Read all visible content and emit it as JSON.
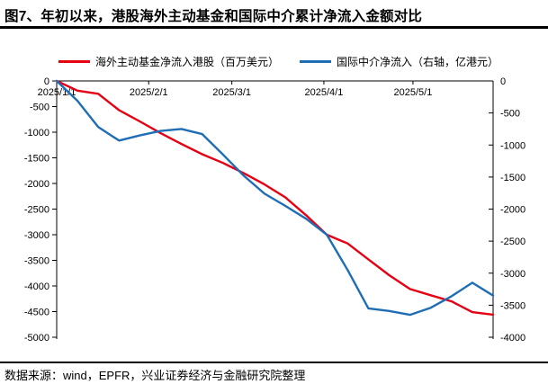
{
  "title": "图7、年初以来，港股海外主动基金和国际中介累计净流入金额对比",
  "footer": "数据来源：wind，EPFR，兴业证券经济与金融研究院整理",
  "colors": {
    "series_red": "#e60014",
    "series_blue": "#1f6eb5",
    "axis": "#000000",
    "text": "#000000"
  },
  "legend": [
    {
      "label": "海外主动基金净流入港股（百万美元）",
      "color": "#e60014"
    },
    {
      "label": "国际中介净流入（右轴，亿港元）",
      "color": "#1f6eb5"
    }
  ],
  "chart_data": {
    "type": "line",
    "title": "",
    "grid": false,
    "legend_position": "top",
    "x_tick_labels": [
      "2025/1/1",
      "2025/2/1",
      "2025/3/1",
      "2025/4/1",
      "2025/5/1"
    ],
    "x_ticks": [
      {
        "label": "2025/1/1",
        "day": 0
      },
      {
        "label": "2025/2/1",
        "day": 31
      },
      {
        "label": "2025/3/1",
        "day": 59
      },
      {
        "label": "2025/4/1",
        "day": 90
      },
      {
        "label": "2025/5/1",
        "day": 120
      }
    ],
    "dates": [
      "2025/1/1",
      "2025/1/8",
      "2025/1/15",
      "2025/1/22",
      "2025/1/29",
      "2025/2/5",
      "2025/2/12",
      "2025/2/19",
      "2025/2/26",
      "2025/3/5",
      "2025/3/12",
      "2025/3/19",
      "2025/3/26",
      "2025/4/2",
      "2025/4/9",
      "2025/4/16",
      "2025/4/23",
      "2025/4/30",
      "2025/5/7",
      "2025/5/14",
      "2025/5/21",
      "2025/5/28"
    ],
    "day_offsets": [
      0,
      7,
      14,
      21,
      28,
      35,
      42,
      49,
      56,
      63,
      70,
      77,
      84,
      91,
      98,
      105,
      112,
      119,
      126,
      133,
      140,
      147
    ],
    "series": [
      {
        "name": "海外主动基金净流入港股（百万美元）",
        "axis": "left",
        "color": "#e60014",
        "values": [
          0,
          -190,
          -250,
          -570,
          -790,
          -1020,
          -1230,
          -1430,
          -1600,
          -1800,
          -2020,
          -2270,
          -2620,
          -3000,
          -3170,
          -3480,
          -3790,
          -4060,
          -4180,
          -4300,
          -4510,
          -4560
        ]
      },
      {
        "name": "国际中介净流入（右轴，亿港元）",
        "axis": "right",
        "color": "#1f6eb5",
        "values": [
          0,
          -310,
          -720,
          -930,
          -850,
          -780,
          -750,
          -830,
          -1150,
          -1480,
          -1760,
          -1950,
          -2150,
          -2400,
          -2950,
          -3550,
          -3590,
          -3650,
          -3540,
          -3360,
          -3150,
          -3350
        ]
      }
    ],
    "left_axis": {
      "label": "海外主动基金净流入港股（百万美元）",
      "min": -5000,
      "max": 0,
      "step": 500,
      "ticks": [
        0,
        -500,
        -1000,
        -1500,
        -2000,
        -2500,
        -3000,
        -3500,
        -4000,
        -4500,
        -5000
      ]
    },
    "right_axis": {
      "label": "国际中介净流入（亿港元）",
      "min": -4000,
      "max": 0,
      "step": 500,
      "ticks": [
        0,
        -500,
        -1000,
        -1500,
        -2000,
        -2500,
        -3000,
        -3500,
        -4000
      ]
    }
  }
}
